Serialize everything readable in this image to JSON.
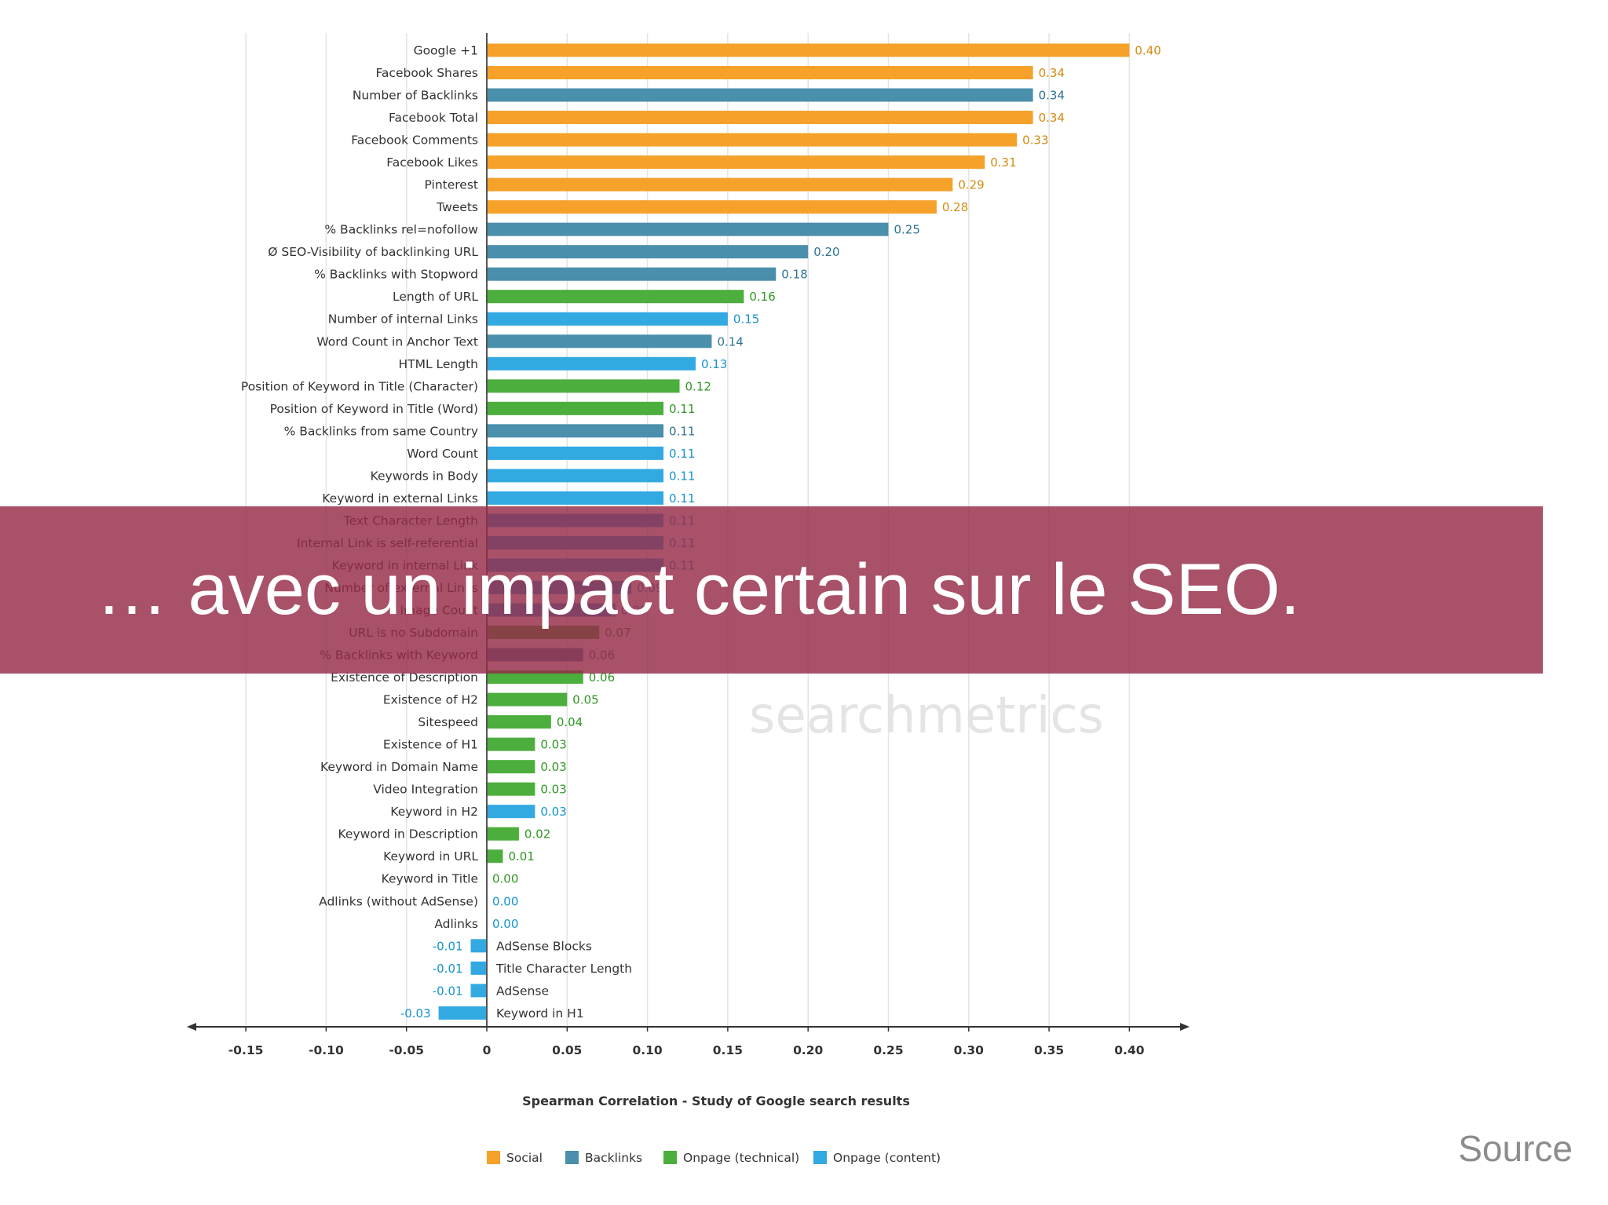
{
  "chart_data": {
    "type": "bar",
    "orientation": "horizontal",
    "title": "Spearman Correlation - Study of Google search results",
    "xlim": [
      -0.18,
      0.44
    ],
    "xticks": [
      "-0.15",
      "-0.10",
      "-0.05",
      "0",
      "0.05",
      "0.10",
      "0.15",
      "0.20",
      "0.25",
      "0.30",
      "0.35",
      "0.40"
    ],
    "grid": true,
    "legend_position": "bottom",
    "watermark": "searchmetrics",
    "legend": [
      {
        "name": "Social",
        "color": "#f5a12a"
      },
      {
        "name": "Backlinks",
        "color": "#4a8fab"
      },
      {
        "name": "Onpage (technical)",
        "color": "#4cae3c"
      },
      {
        "name": "Onpage (content)",
        "color": "#33a9e2"
      }
    ],
    "bars": [
      {
        "label": "Google +1",
        "value": 0.4,
        "value_label": "0.40",
        "series": 0
      },
      {
        "label": "Facebook Shares",
        "value": 0.34,
        "value_label": "0.34",
        "series": 0
      },
      {
        "label": "Number of Backlinks",
        "value": 0.34,
        "value_label": "0.34",
        "series": 1
      },
      {
        "label": "Facebook Total",
        "value": 0.34,
        "value_label": "0.34",
        "series": 0
      },
      {
        "label": "Facebook Comments",
        "value": 0.33,
        "value_label": "0.33",
        "series": 0
      },
      {
        "label": "Facebook Likes",
        "value": 0.31,
        "value_label": "0.31",
        "series": 0
      },
      {
        "label": "Pinterest",
        "value": 0.29,
        "value_label": "0.29",
        "series": 0
      },
      {
        "label": "Tweets",
        "value": 0.28,
        "value_label": "0.28",
        "series": 0
      },
      {
        "label": "% Backlinks rel=nofollow",
        "value": 0.25,
        "value_label": "0.25",
        "series": 1
      },
      {
        "label": "Ø SEO-Visibility of backlinking URL",
        "value": 0.2,
        "value_label": "0.20",
        "series": 1
      },
      {
        "label": "% Backlinks with Stopword",
        "value": 0.18,
        "value_label": "0.18",
        "series": 1
      },
      {
        "label": "Length of URL",
        "value": 0.16,
        "value_label": "0.16",
        "series": 2
      },
      {
        "label": "Number of internal Links",
        "value": 0.15,
        "value_label": "0.15",
        "series": 3
      },
      {
        "label": "Word Count in Anchor Text",
        "value": 0.14,
        "value_label": "0.14",
        "series": 1
      },
      {
        "label": "HTML Length",
        "value": 0.13,
        "value_label": "0.13",
        "series": 3
      },
      {
        "label": "Position of Keyword in Title (Character)",
        "value": 0.12,
        "value_label": "0.12",
        "series": 2
      },
      {
        "label": "Position of Keyword in Title (Word)",
        "value": 0.11,
        "value_label": "0.11",
        "series": 2
      },
      {
        "label": "% Backlinks from same Country",
        "value": 0.11,
        "value_label": "0.11",
        "series": 1
      },
      {
        "label": "Word Count",
        "value": 0.11,
        "value_label": "0.11",
        "series": 3
      },
      {
        "label": "Keywords in Body",
        "value": 0.11,
        "value_label": "0.11",
        "series": 3
      },
      {
        "label": "Keyword in external Links",
        "value": 0.11,
        "value_label": "0.11",
        "series": 3
      },
      {
        "label": "Text Character Length",
        "value": 0.11,
        "value_label": "0.11",
        "series": 3
      },
      {
        "label": "Internal Link is self-referential",
        "value": 0.11,
        "value_label": "0.11",
        "series": 3
      },
      {
        "label": "Keyword in internal Link",
        "value": 0.11,
        "value_label": "0.11",
        "series": 3
      },
      {
        "label": "Number of external Links",
        "value": 0.09,
        "value_label": "0.09",
        "series": 3
      },
      {
        "label": "Image Count",
        "value": 0.08,
        "value_label": "0.08",
        "series": 3
      },
      {
        "label": "URL is no Subdomain",
        "value": 0.07,
        "value_label": "0.07",
        "series": 2
      },
      {
        "label": "% Backlinks with Keyword",
        "value": 0.06,
        "value_label": "0.06",
        "series": 1
      },
      {
        "label": "Existence of Description",
        "value": 0.06,
        "value_label": "0.06",
        "series": 2
      },
      {
        "label": "Existence of H2",
        "value": 0.05,
        "value_label": "0.05",
        "series": 2
      },
      {
        "label": "Sitespeed",
        "value": 0.04,
        "value_label": "0.04",
        "series": 2
      },
      {
        "label": "Existence of H1",
        "value": 0.03,
        "value_label": "0.03",
        "series": 2
      },
      {
        "label": "Keyword in Domain Name",
        "value": 0.03,
        "value_label": "0.03",
        "series": 2
      },
      {
        "label": "Video Integration",
        "value": 0.03,
        "value_label": "0.03",
        "series": 2
      },
      {
        "label": "Keyword in H2",
        "value": 0.03,
        "value_label": "0.03",
        "series": 3
      },
      {
        "label": "Keyword in Description",
        "value": 0.02,
        "value_label": "0.02",
        "series": 2
      },
      {
        "label": "Keyword in URL",
        "value": 0.01,
        "value_label": "0.01",
        "series": 2
      },
      {
        "label": "Keyword in Title",
        "value": 0.0,
        "value_label": "0.00",
        "series": 2
      },
      {
        "label": "Adlinks (without AdSense)",
        "value": 0.0,
        "value_label": "0.00",
        "series": 3
      },
      {
        "label": "Adlinks",
        "value": 0.0,
        "value_label": "0.00",
        "series": 3
      },
      {
        "label": "AdSense Blocks",
        "value": -0.01,
        "value_label": "-0.01",
        "series": 3
      },
      {
        "label": "Title Character Length",
        "value": -0.01,
        "value_label": "-0.01",
        "series": 3
      },
      {
        "label": "AdSense",
        "value": -0.01,
        "value_label": "-0.01",
        "series": 3
      },
      {
        "label": "Keyword in H1",
        "value": -0.03,
        "value_label": "-0.03",
        "series": 3
      }
    ]
  },
  "overlay": {
    "banner_text": "… avec un impact certain sur le SEO.",
    "source_label": "Source"
  }
}
